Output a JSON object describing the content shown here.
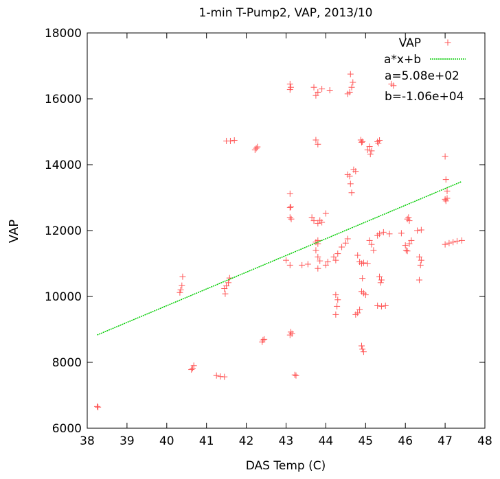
{
  "chart_data": {
    "type": "scatter",
    "title": "1-min T-Pump2, VAP, 2013/10",
    "xlabel": "DAS Temp (C)",
    "ylabel": "VAP",
    "xlim": [
      38,
      48
    ],
    "ylim": [
      6000,
      18000
    ],
    "x_ticks": [
      "38",
      "39",
      "40",
      "41",
      "42",
      "43",
      "44",
      "45",
      "46",
      "47",
      "48"
    ],
    "y_ticks": [
      "6000",
      "8000",
      "10000",
      "12000",
      "14000",
      "16000",
      "18000"
    ],
    "grid": false,
    "legend_position": "top-right",
    "point_color": "#ff5555",
    "line_color": "#00cc00",
    "legend": {
      "series_label": "VAP",
      "fit_label": "a*x+b",
      "a_text": "a=5.08e+02",
      "b_text": "b=-1.06e+04"
    },
    "fit": {
      "a": 508,
      "b": -10600,
      "x_range": [
        38.25,
        47.4
      ]
    },
    "series": [
      {
        "name": "VAP",
        "points": [
          [
            38.25,
            6660
          ],
          [
            38.27,
            6640
          ],
          [
            40.35,
            10200
          ],
          [
            40.38,
            10330
          ],
          [
            40.4,
            10600
          ],
          [
            40.33,
            10120
          ],
          [
            40.65,
            7820
          ],
          [
            40.68,
            7900
          ],
          [
            40.62,
            7780
          ],
          [
            41.25,
            7600
          ],
          [
            41.35,
            7570
          ],
          [
            41.45,
            7560
          ],
          [
            41.45,
            10240
          ],
          [
            41.5,
            10320
          ],
          [
            41.55,
            10420
          ],
          [
            41.58,
            10560
          ],
          [
            41.47,
            10080
          ],
          [
            41.5,
            14720
          ],
          [
            41.6,
            14720
          ],
          [
            41.7,
            14740
          ],
          [
            42.25,
            14500
          ],
          [
            42.22,
            14450
          ],
          [
            42.28,
            14540
          ],
          [
            42.4,
            8620
          ],
          [
            42.42,
            8680
          ],
          [
            42.45,
            8700
          ],
          [
            43.1,
            8830
          ],
          [
            43.15,
            8870
          ],
          [
            43.12,
            8920
          ],
          [
            43.22,
            7620
          ],
          [
            43.25,
            7600
          ],
          [
            43.1,
            12700
          ],
          [
            43.12,
            12720
          ],
          [
            43.1,
            13120
          ],
          [
            43.1,
            12400
          ],
          [
            43.13,
            12350
          ],
          [
            43.1,
            16450
          ],
          [
            43.12,
            16350
          ],
          [
            43.1,
            16280
          ],
          [
            43.0,
            11100
          ],
          [
            43.1,
            10950
          ],
          [
            43.4,
            10950
          ],
          [
            43.55,
            10980
          ],
          [
            43.65,
            12400
          ],
          [
            43.7,
            12300
          ],
          [
            43.8,
            12220
          ],
          [
            43.85,
            12310
          ],
          [
            43.9,
            12250
          ],
          [
            44.0,
            12520
          ],
          [
            43.8,
            11700
          ],
          [
            43.75,
            11650
          ],
          [
            43.8,
            11600
          ],
          [
            43.75,
            11400
          ],
          [
            43.8,
            11200
          ],
          [
            43.85,
            11080
          ],
          [
            43.8,
            10850
          ],
          [
            44.0,
            10950
          ],
          [
            44.05,
            11050
          ],
          [
            43.75,
            14750
          ],
          [
            43.8,
            14620
          ],
          [
            43.7,
            16350
          ],
          [
            43.8,
            16200
          ],
          [
            43.75,
            16100
          ],
          [
            43.9,
            16300
          ],
          [
            44.1,
            16260
          ],
          [
            44.2,
            11200
          ],
          [
            44.25,
            11100
          ],
          [
            44.3,
            11300
          ],
          [
            44.4,
            11500
          ],
          [
            44.5,
            11620
          ],
          [
            44.55,
            11750
          ],
          [
            44.25,
            10050
          ],
          [
            44.3,
            9900
          ],
          [
            44.28,
            9700
          ],
          [
            44.25,
            9450
          ],
          [
            44.55,
            13700
          ],
          [
            44.6,
            13650
          ],
          [
            44.62,
            13420
          ],
          [
            44.65,
            13150
          ],
          [
            44.7,
            13850
          ],
          [
            44.75,
            13800
          ],
          [
            44.55,
            16150
          ],
          [
            44.6,
            16200
          ],
          [
            44.65,
            16350
          ],
          [
            44.68,
            16500
          ],
          [
            44.62,
            16750
          ],
          [
            44.75,
            9450
          ],
          [
            44.8,
            9500
          ],
          [
            44.85,
            9600
          ],
          [
            44.8,
            11250
          ],
          [
            44.85,
            11050
          ],
          [
            44.9,
            11000
          ],
          [
            44.95,
            11020
          ],
          [
            45.05,
            11000
          ],
          [
            44.88,
            14750
          ],
          [
            44.92,
            14700
          ],
          [
            44.9,
            14680
          ],
          [
            44.9,
            10150
          ],
          [
            44.95,
            10100
          ],
          [
            45.0,
            10050
          ],
          [
            44.92,
            10550
          ],
          [
            44.9,
            8500
          ],
          [
            44.92,
            8400
          ],
          [
            44.95,
            8320
          ],
          [
            45.05,
            14450
          ],
          [
            45.1,
            14550
          ],
          [
            45.15,
            14420
          ],
          [
            45.12,
            14320
          ],
          [
            45.1,
            11700
          ],
          [
            45.15,
            11580
          ],
          [
            45.2,
            11400
          ],
          [
            45.3,
            14700
          ],
          [
            45.32,
            14650
          ],
          [
            45.35,
            14740
          ],
          [
            45.3,
            11850
          ],
          [
            45.35,
            11900
          ],
          [
            45.45,
            11950
          ],
          [
            45.6,
            11900
          ],
          [
            45.35,
            10600
          ],
          [
            45.4,
            10500
          ],
          [
            45.38,
            10420
          ],
          [
            45.3,
            9720
          ],
          [
            45.4,
            9700
          ],
          [
            45.5,
            9720
          ],
          [
            45.65,
            16450
          ],
          [
            45.7,
            16400
          ],
          [
            45.9,
            11920
          ],
          [
            46.05,
            12350
          ],
          [
            46.08,
            12400
          ],
          [
            46.1,
            12300
          ],
          [
            46.0,
            11550
          ],
          [
            46.02,
            11400
          ],
          [
            46.05,
            11380
          ],
          [
            46.1,
            11600
          ],
          [
            46.15,
            11700
          ],
          [
            46.3,
            12000
          ],
          [
            46.4,
            12020
          ],
          [
            46.35,
            11200
          ],
          [
            46.38,
            10950
          ],
          [
            46.35,
            10500
          ],
          [
            46.4,
            11100
          ],
          [
            47.0,
            14250
          ],
          [
            47.02,
            13550
          ],
          [
            47.05,
            13200
          ],
          [
            47.0,
            12950
          ],
          [
            47.02,
            12900
          ],
          [
            47.05,
            12980
          ],
          [
            47.0,
            11580
          ],
          [
            47.1,
            11620
          ],
          [
            47.2,
            11650
          ],
          [
            47.3,
            11680
          ],
          [
            47.42,
            11700
          ]
        ]
      }
    ]
  }
}
